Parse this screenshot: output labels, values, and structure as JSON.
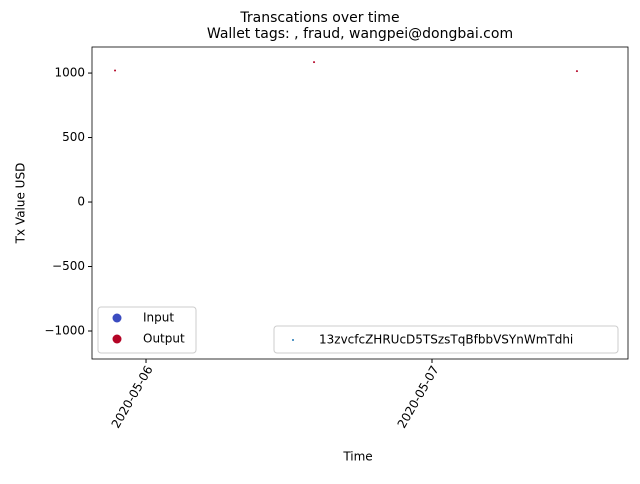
{
  "chart_data": {
    "type": "scatter",
    "title": "Transcations over time",
    "subtitle": "Wallet tags: , fraud, wangpei@dongbai.com",
    "x_label": "Time",
    "y_label": "Tx Value USD",
    "xlim": [
      "2020-05-05 19:28",
      "2020-05-07 16:27"
    ],
    "xticks": [
      "2020-05-06",
      "2020-05-07"
    ],
    "ylim": [
      -1217,
      1202
    ],
    "yticks": [
      {
        "value": -1000,
        "label": "−1000"
      },
      {
        "value": -500,
        "label": "−500"
      },
      0,
      500,
      1000
    ],
    "kind_legend": [
      {
        "name": "Input",
        "color": "#3b4cc0"
      },
      {
        "name": "Output",
        "color": "#b40426"
      }
    ],
    "series": [
      {
        "name": "13zvcfcZHRUcD5TSzsTqBfbbVSYnWmTdhi",
        "color": "#1f77b4",
        "x": [
          "2020-05-05 21:24",
          "2020-05-06 14:06",
          "2020-05-07 12:10"
        ],
        "values": [
          1020,
          1085,
          1015
        ],
        "kinds": [
          "Output",
          "Output",
          "Output"
        ]
      }
    ]
  }
}
